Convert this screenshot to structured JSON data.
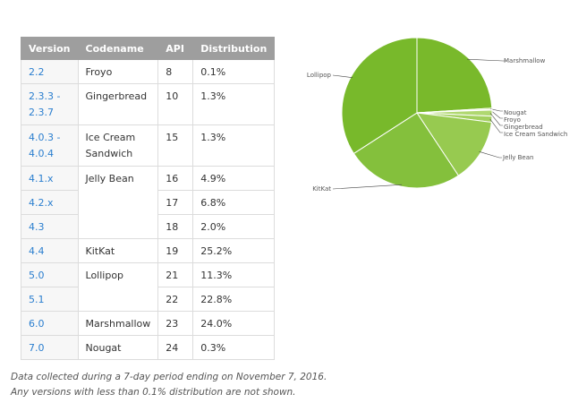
{
  "table": {
    "headers": [
      "Version",
      "Codename",
      "API",
      "Distribution"
    ],
    "rows": [
      {
        "version": "2.2",
        "codename": "Froyo",
        "api": "8",
        "dist": "0.1%"
      },
      {
        "version": "2.3.3 - 2.3.7",
        "codename": "Gingerbread",
        "api": "10",
        "dist": "1.3%"
      },
      {
        "version": "4.0.3 - 4.0.4",
        "codename": "Ice Cream Sandwich",
        "api": "15",
        "dist": "1.3%"
      },
      {
        "version": "4.1.x",
        "codename": "Jelly Bean",
        "api": "16",
        "dist": "4.9%"
      },
      {
        "version": "4.2.x",
        "codename": "",
        "api": "17",
        "dist": "6.8%"
      },
      {
        "version": "4.3",
        "codename": "",
        "api": "18",
        "dist": "2.0%"
      },
      {
        "version": "4.4",
        "codename": "KitKat",
        "api": "19",
        "dist": "25.2%"
      },
      {
        "version": "5.0",
        "codename": "Lollipop",
        "api": "21",
        "dist": "11.3%"
      },
      {
        "version": "5.1",
        "codename": "",
        "api": "22",
        "dist": "22.8%"
      },
      {
        "version": "6.0",
        "codename": "Marshmallow",
        "api": "23",
        "dist": "24.0%"
      },
      {
        "version": "7.0",
        "codename": "Nougat",
        "api": "24",
        "dist": "0.3%"
      }
    ]
  },
  "chart_data": {
    "type": "pie",
    "slices": [
      {
        "label": "Marshmallow",
        "value": 24.0,
        "color": "#79b92b"
      },
      {
        "label": "Nougat",
        "value": 0.3,
        "color": "#b4dc72"
      },
      {
        "label": "Froyo",
        "value": 0.1,
        "color": "#c4e48e"
      },
      {
        "label": "Gingerbread",
        "value": 1.3,
        "color": "#b0d871"
      },
      {
        "label": "Ice Cream Sandwich",
        "value": 1.3,
        "color": "#a3d05f"
      },
      {
        "label": "Jelly Bean",
        "value": 13.7,
        "color": "#97ca50"
      },
      {
        "label": "KitKat",
        "value": 25.2,
        "color": "#84c03c"
      },
      {
        "label": "Lollipop",
        "value": 34.1,
        "color": "#78b92b"
      }
    ]
  },
  "notes": {
    "line1": "Data collected during a 7-day period ending on November 7, 2016.",
    "line2": "Any versions with less than 0.1% distribution are not shown."
  }
}
